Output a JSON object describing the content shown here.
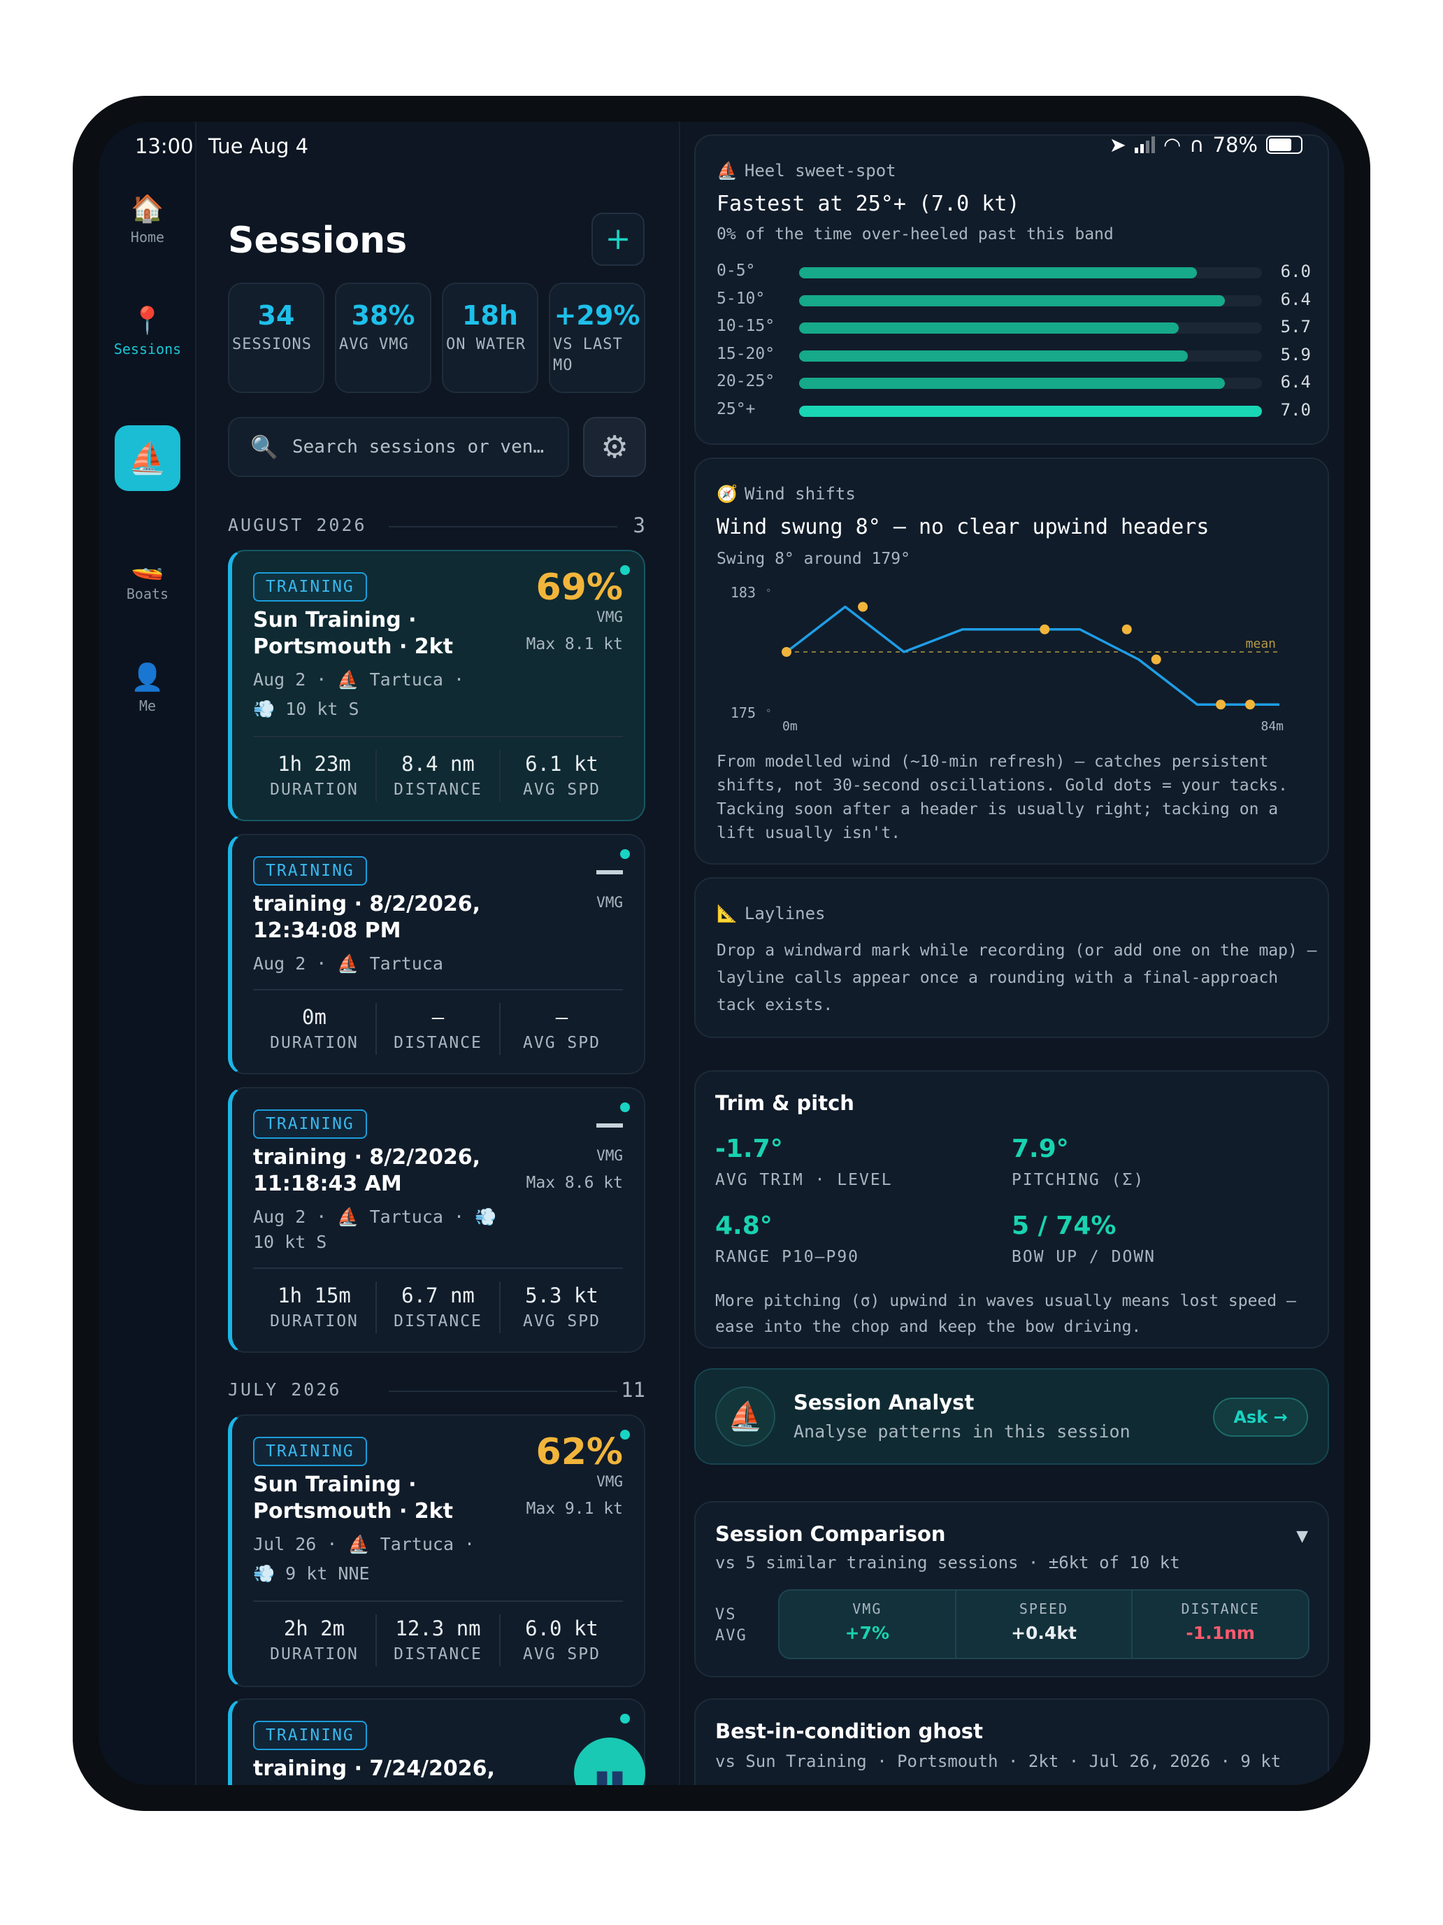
{
  "status": {
    "time": "13:00",
    "date": "Tue Aug 4",
    "battery": "78%"
  },
  "rail": {
    "items": [
      {
        "label": "Home",
        "icon": "house-icon",
        "glyph": "🏠"
      },
      {
        "label": "Sessions",
        "icon": "pin-icon",
        "glyph": "📍"
      },
      {
        "label": "",
        "icon": "sailboat-icon",
        "glyph": "⛵"
      },
      {
        "label": "Boats",
        "icon": "boat-icon",
        "glyph": "🚤"
      },
      {
        "label": "Me",
        "icon": "person-icon",
        "glyph": "👤"
      }
    ]
  },
  "sessions": {
    "title": "Sessions",
    "add_label": "+",
    "stats": [
      {
        "value": "34",
        "label": "SESSIONS"
      },
      {
        "value": "38%",
        "label": "AVG VMG"
      },
      {
        "value": "18h",
        "label": "ON WATER"
      },
      {
        "value": "+29%",
        "label": "VS LAST MO"
      }
    ],
    "search_placeholder": "Search sessions or ven…",
    "groups": [
      {
        "month": "AUGUST 2026",
        "count": "3"
      },
      {
        "month": "JULY 2026",
        "count": "11"
      }
    ],
    "cards": [
      {
        "badge": "TRAINING",
        "vmg_value": "69%",
        "vmg_label": "VMG",
        "name": "Sun Training · Portsmouth · 2kt",
        "max": "Max 8.1 kt",
        "meta1": "Aug 2 · ⛵ Tartuca ·",
        "meta2": "💨 10 kt S",
        "duration": "1h 23m",
        "distance": "8.4 nm",
        "avg_spd": "6.1 kt"
      },
      {
        "badge": "TRAINING",
        "vmg_value": "",
        "vmg_label": "VMG",
        "name": "training · 8/2/2026, 12:34:08 PM",
        "max": "",
        "meta1": "Aug 2 · ⛵ Tartuca",
        "meta2": "",
        "duration": "0m",
        "distance": "–",
        "avg_spd": "–"
      },
      {
        "badge": "TRAINING",
        "vmg_value": "",
        "vmg_label": "VMG",
        "name": "training · 8/2/2026, 11:18:43 AM",
        "max": "Max 8.6 kt",
        "meta1": "Aug 2 · ⛵ Tartuca · 💨",
        "meta2": "10 kt S",
        "duration": "1h 15m",
        "distance": "6.7 nm",
        "avg_spd": "5.3 kt"
      },
      {
        "badge": "TRAINING",
        "vmg_value": "62%",
        "vmg_label": "VMG",
        "name": "Sun Training · Portsmouth · 2kt",
        "max": "Max 9.1 kt",
        "meta1": "Jul 26 · ⛵ Tartuca ·",
        "meta2": "💨 9 kt NNE",
        "duration": "2h 2m",
        "distance": "12.3 nm",
        "avg_spd": "6.0 kt"
      },
      {
        "badge": "TRAINING",
        "name": "training · 7/24/2026,"
      }
    ],
    "metric_labels": {
      "duration": "DURATION",
      "distance": "DISTANCE",
      "avg_spd": "AVG SPD"
    }
  },
  "heel": {
    "header": "Heel sweet-spot",
    "headline": "Fastest at 25°+ (7.0 kt)",
    "sub": "0% of the time over-heeled past this band",
    "bands": [
      {
        "label": "0-5°",
        "value": "6.0",
        "fraction": 0.86
      },
      {
        "label": "5-10°",
        "value": "6.4",
        "fraction": 0.92
      },
      {
        "label": "10-15°",
        "value": "5.7",
        "fraction": 0.82
      },
      {
        "label": "15-20°",
        "value": "5.9",
        "fraction": 0.84
      },
      {
        "label": "20-25°",
        "value": "6.4",
        "fraction": 0.92
      },
      {
        "label": "25°+",
        "value": "7.0",
        "fraction": 1.0
      }
    ]
  },
  "wind": {
    "header": "Wind shifts",
    "headline": "Wind swung 8° — no clear upwind headers",
    "sub": "Swing 8° around 179°",
    "note": "From modelled wind (~10-min refresh) — catches persistent shifts, not 30-second oscillations. Gold dots = your tacks. Tacking soon after a header is usually right; tacking on a lift usually isn't."
  },
  "chart_data": {
    "type": "line",
    "y_ticks": [
      "183",
      "175"
    ],
    "x_ticks": [
      "0m",
      "84m"
    ],
    "ylim": [
      175,
      183
    ],
    "mean_label": "mean",
    "mean": 179,
    "series": [
      {
        "x": [
          0,
          10,
          20,
          30,
          40,
          50,
          60,
          70,
          80,
          84
        ],
        "values": [
          179,
          182,
          179,
          180.5,
          180.5,
          180.5,
          178.5,
          175.5,
          175.5,
          175.5
        ]
      }
    ],
    "tacks": [
      {
        "x": 0,
        "value": 179
      },
      {
        "x": 13,
        "value": 182
      },
      {
        "x": 44,
        "value": 180.5
      },
      {
        "x": 58,
        "value": 180.5
      },
      {
        "x": 63,
        "value": 178.5
      },
      {
        "x": 74,
        "value": 175.5
      },
      {
        "x": 79,
        "value": 175.5
      }
    ]
  },
  "laylines": {
    "header": "Laylines",
    "text": "Drop a windward mark while recording (or add one on the map) — layline calls appear once a rounding with a final-approach tack exists."
  },
  "trim": {
    "title": "Trim & pitch",
    "avg_trim": "-1.7°",
    "avg_trim_label": "AVG TRIM · LEVEL",
    "pitching": "7.9°",
    "pitching_label": "PITCHING (Σ)",
    "range": "4.8°",
    "range_label": "RANGE P10–P90",
    "bow": "5 / 74%",
    "bow_label": "BOW UP / DOWN",
    "note": "More pitching (σ) upwind in waves usually means lost speed — ease into the chop and keep the bow driving."
  },
  "analyst": {
    "title": "Session Analyst",
    "sub": "Analyse patterns in this session",
    "ask": "Ask →"
  },
  "comparison": {
    "title": "Session Comparison",
    "sub": "vs 5 similar training sessions · ±6kt of 10 kt",
    "vs": "VS AVG",
    "cols": [
      {
        "label": "VMG",
        "value": "+7%",
        "color": "#19d3b0"
      },
      {
        "label": "SPEED",
        "value": "+0.4kt",
        "color": "#e8eef2"
      },
      {
        "label": "DISTANCE",
        "value": "-1.1nm",
        "color": "#ff5a6e"
      }
    ]
  },
  "ghost": {
    "title": "Best-in-condition ghost",
    "sub": "vs Sun Training · Portsmouth · 2kt · Jul 26, 2026 · 9 kt"
  },
  "colors": {
    "accent": "#19d3c3",
    "vmg_gold": "#f2b53b",
    "tack_dot": "#f2b53b",
    "line": "#1e9ee6"
  }
}
